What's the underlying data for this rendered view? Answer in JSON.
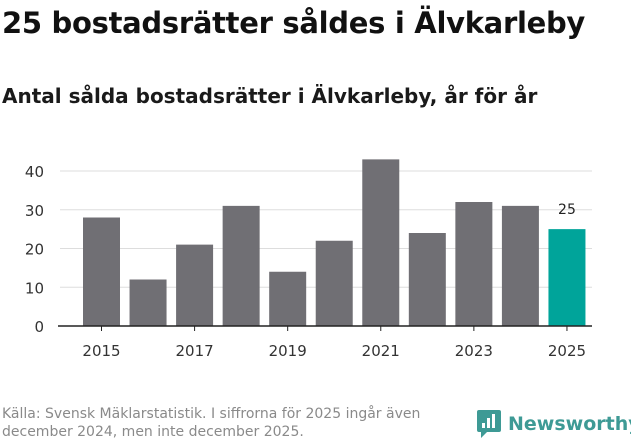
{
  "header": {
    "title": "25 bostadsrätter såldes i Älvkarleby",
    "subtitle": "Antal sålda bostadsrätter i Älvkarleby, år för år"
  },
  "footer": {
    "source": "Källa: Svensk Mäklarstatistik. I siffrorna för 2025 ingår även december 2024, men inte december 2025.",
    "brand": "Newsworthy"
  },
  "colors": {
    "bar": "#706f74",
    "highlight": "#00a49a",
    "grid": "#dddddd",
    "axis": "#222222",
    "brand": "#3e9a95"
  },
  "chart_data": {
    "type": "bar",
    "title": "Antal sålda bostadsrätter i Älvkarleby, år för år",
    "xlabel": "",
    "ylabel": "",
    "categories": [
      "2015",
      "2016",
      "2017",
      "2018",
      "2019",
      "2020",
      "2021",
      "2022",
      "2023",
      "2024",
      "2025"
    ],
    "values": [
      28,
      12,
      21,
      31,
      14,
      22,
      43,
      24,
      32,
      31,
      25
    ],
    "x_tick_labels": [
      "2015",
      "2017",
      "2019",
      "2021",
      "2023",
      "2025"
    ],
    "y_ticks": [
      0,
      10,
      20,
      30,
      40
    ],
    "ylim": [
      0,
      43
    ],
    "grid": true,
    "highlight_category": "2025",
    "annotations": [
      {
        "category": "2025",
        "text": "25"
      }
    ]
  }
}
